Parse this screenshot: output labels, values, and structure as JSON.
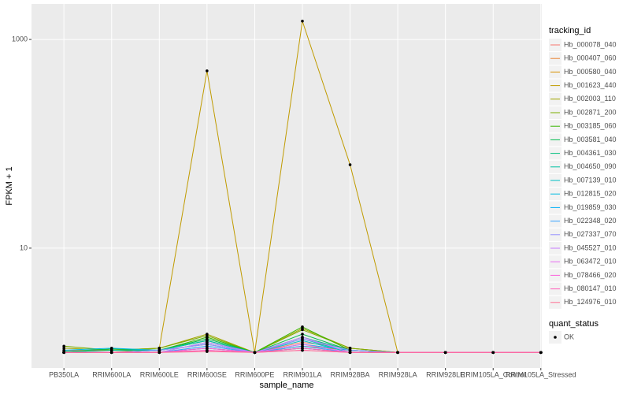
{
  "chart_data": {
    "type": "line",
    "x_label": "sample_name",
    "y_label": "FPKM + 1",
    "categories": [
      "PB350LA",
      "RRIM600LA",
      "RRIM600LE",
      "RRIM600SE",
      "RRIM600PE",
      "RRIM901LA",
      "RRIM928BA",
      "RRIM928LA",
      "RRIM928LE",
      "RRIM105LA_Control",
      "RRIM105LA_Stressed"
    ],
    "log_y": true,
    "ylim": [
      0.71,
      2190
    ],
    "yticks": [
      10,
      1000
    ],
    "grid": true,
    "legend_title": "tracking_id",
    "legend_position": "right",
    "point_legend_title": "quant_status",
    "point_legend_label": "OK",
    "point_color": "#000000",
    "series": [
      {
        "name": "Hb_000078_040",
        "color": "#F8766D",
        "values": [
          1.05,
          1.05,
          1.05,
          1.3,
          1,
          1.25,
          1.1,
          1,
          1,
          1,
          1
        ]
      },
      {
        "name": "Hb_000407_060",
        "color": "#EA8331",
        "values": [
          1,
          1,
          1.05,
          1.2,
          1,
          1.15,
          1.05,
          1,
          1,
          1,
          1
        ]
      },
      {
        "name": "Hb_000580_040",
        "color": "#D89000",
        "values": [
          1,
          1,
          1,
          1.1,
          1,
          1.1,
          1,
          1,
          1,
          1,
          1
        ]
      },
      {
        "name": "Hb_001623_440",
        "color": "#C09B00",
        "values": [
          1,
          1,
          1.1,
          500,
          1,
          1500,
          63,
          1,
          1,
          1,
          1
        ]
      },
      {
        "name": "Hb_002003_110",
        "color": "#A3A500",
        "values": [
          1.1,
          1.05,
          1.1,
          1.5,
          1,
          1.7,
          1.1,
          1,
          1,
          1,
          1
        ]
      },
      {
        "name": "Hb_002871_200",
        "color": "#7CAE00",
        "values": [
          1.15,
          1.05,
          1.1,
          1.45,
          1,
          1.65,
          1.1,
          1,
          1,
          1,
          1
        ]
      },
      {
        "name": "Hb_003185_060",
        "color": "#39B600",
        "values": [
          1,
          1,
          1.05,
          1.4,
          1,
          1.76,
          1.05,
          1,
          1,
          1,
          1
        ]
      },
      {
        "name": "Hb_003581_040",
        "color": "#00BB4E",
        "values": [
          1.02,
          1.08,
          1.05,
          1.35,
          1,
          1.5,
          1.05,
          1,
          1,
          1,
          1
        ]
      },
      {
        "name": "Hb_004361_030",
        "color": "#00BF7D",
        "values": [
          1,
          1.05,
          1.05,
          1.3,
          1,
          1.4,
          1.05,
          1,
          1,
          1,
          1
        ]
      },
      {
        "name": "Hb_004650_090",
        "color": "#00C1A3",
        "values": [
          1,
          1,
          1.05,
          1.3,
          1,
          1.35,
          1,
          1,
          1,
          1,
          1
        ]
      },
      {
        "name": "Hb_007139_010",
        "color": "#00BFC4",
        "values": [
          1,
          1,
          1,
          1.25,
          1,
          1.3,
          1,
          1,
          1,
          1,
          1
        ]
      },
      {
        "name": "Hb_012815_020",
        "color": "#00BAE0",
        "values": [
          1.05,
          1.1,
          1.05,
          1.2,
          1,
          1.2,
          1.05,
          1,
          1,
          1,
          1
        ]
      },
      {
        "name": "Hb_019859_030",
        "color": "#00B0F6",
        "values": [
          1,
          1,
          1,
          1.1,
          1,
          1.1,
          1,
          1,
          1,
          1,
          1
        ]
      },
      {
        "name": "Hb_022348_020",
        "color": "#35A2FF",
        "values": [
          1,
          1,
          1,
          1.15,
          1,
          1.15,
          1,
          1,
          1,
          1,
          1
        ]
      },
      {
        "name": "Hb_027337_070",
        "color": "#9590FF",
        "values": [
          1,
          1,
          1.05,
          1.2,
          1,
          1.35,
          1.05,
          1,
          1,
          1,
          1
        ]
      },
      {
        "name": "Hb_045527_010",
        "color": "#C77CFF",
        "values": [
          1,
          1,
          1,
          1.25,
          1,
          1.4,
          1,
          1,
          1,
          1,
          1
        ]
      },
      {
        "name": "Hb_063472_010",
        "color": "#E76BF3",
        "values": [
          1,
          1,
          1,
          1.05,
          1,
          1.2,
          1,
          1,
          1,
          1,
          1
        ]
      },
      {
        "name": "Hb_078466_020",
        "color": "#FA62DB",
        "values": [
          1,
          1,
          1,
          1.1,
          1,
          1.05,
          1,
          1,
          1,
          1,
          1
        ]
      },
      {
        "name": "Hb_080147_010",
        "color": "#FF62BC",
        "values": [
          1,
          1,
          1,
          1.05,
          1,
          1.1,
          1,
          1,
          1,
          1,
          1
        ]
      },
      {
        "name": "Hb_124976_010",
        "color": "#FF6C91",
        "values": [
          1,
          1,
          1,
          1.02,
          1,
          1.05,
          1,
          1,
          1,
          1,
          1
        ]
      }
    ]
  }
}
